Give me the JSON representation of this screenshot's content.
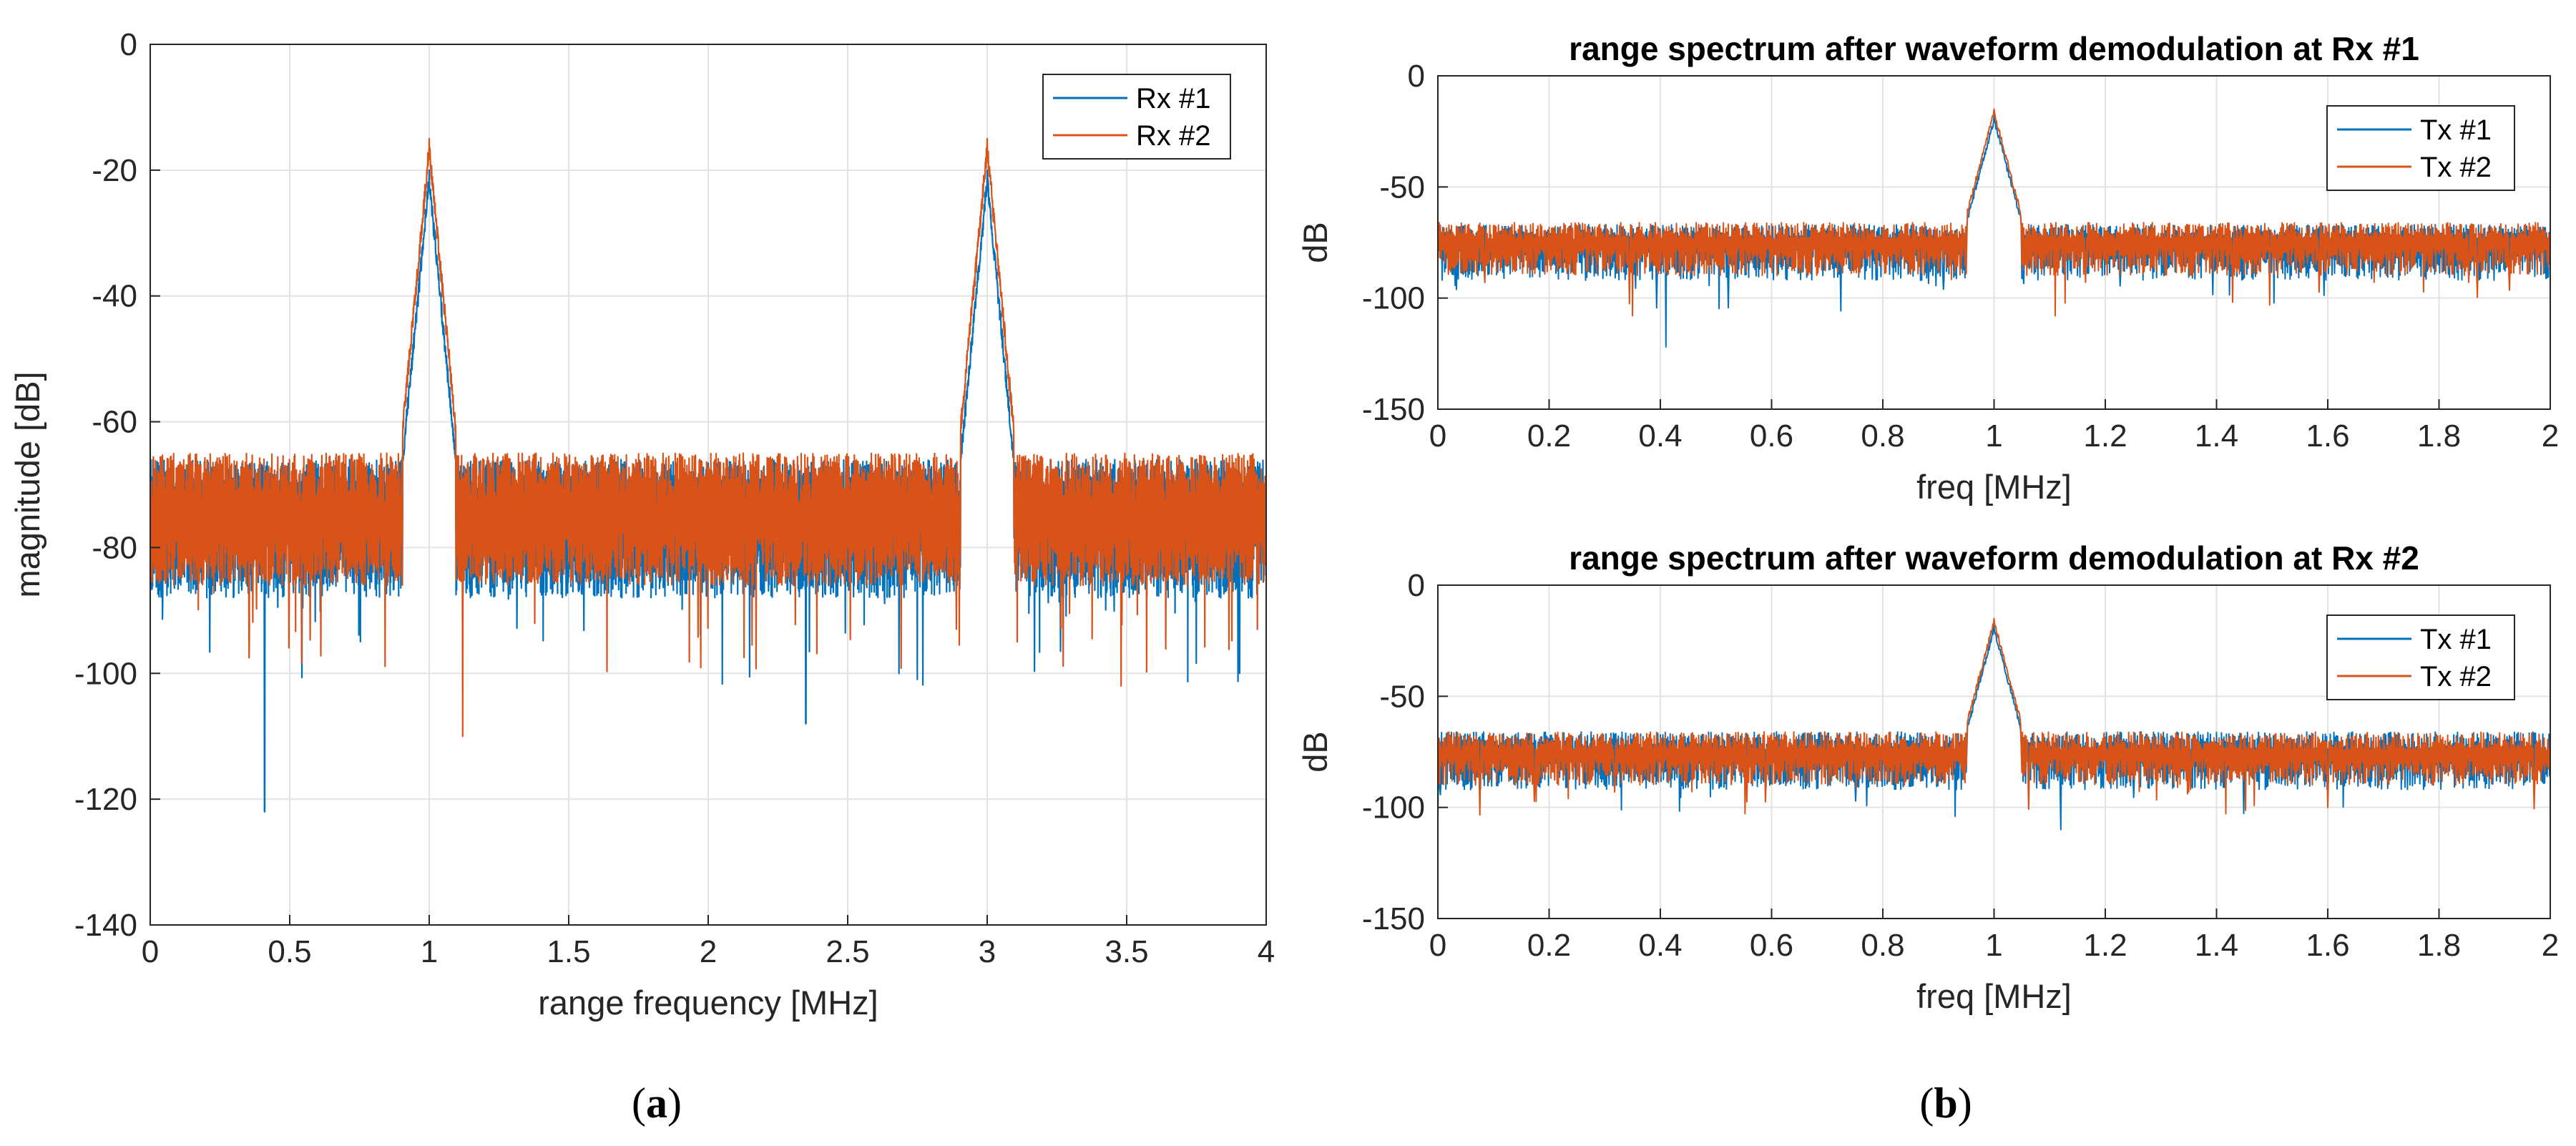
{
  "figure_captions": {
    "a": "a",
    "b": "b"
  },
  "colors": {
    "series1": "#0072BD",
    "series2": "#D95319",
    "grid": "#e3e3e3",
    "axis": "#262626"
  },
  "chart_data": [
    {
      "id": "a",
      "type": "line",
      "title": "",
      "xlabel": "range frequency [MHz]",
      "ylabel": "magnitude [dB]",
      "xlim": [
        0,
        4
      ],
      "ylim": [
        -140,
        0
      ],
      "xticks": [
        0,
        0.5,
        1,
        1.5,
        2,
        2.5,
        3,
        3.5,
        4
      ],
      "xtick_labels": [
        "0",
        "0.5",
        "1",
        "1.5",
        "2",
        "2.5",
        "3",
        "3.5",
        "4"
      ],
      "yticks": [
        -140,
        -120,
        -100,
        -80,
        -60,
        -40,
        -20,
        0
      ],
      "ytick_labels": [
        "-140",
        "-120",
        "-100",
        "-80",
        "-60",
        "-40",
        "-20",
        "0"
      ],
      "grid": true,
      "legend_position": "top-right",
      "series": [
        {
          "name": "Rx #1",
          "noise_floor_db": -75,
          "noise_band_db": [
            -88,
            -66
          ],
          "peaks": [
            {
              "x": 1.0,
              "y": -20
            },
            {
              "x": 3.0,
              "y": -20
            }
          ],
          "deep_dips": [
            {
              "x": 0.41,
              "y": -122
            },
            {
              "x": 2.35,
              "y": -108
            }
          ]
        },
        {
          "name": "Rx #2",
          "noise_floor_db": -75,
          "noise_band_db": [
            -86,
            -65
          ],
          "peaks": [
            {
              "x": 1.0,
              "y": -15
            },
            {
              "x": 3.0,
              "y": -15
            }
          ],
          "deep_dips": [
            {
              "x": 1.12,
              "y": -110
            },
            {
              "x": 3.48,
              "y": -102
            }
          ]
        }
      ]
    },
    {
      "id": "b1",
      "type": "line",
      "title": "range spectrum after waveform demodulation at Rx #1",
      "xlabel": "freq [MHz]",
      "ylabel": "dB",
      "xlim": [
        0,
        2
      ],
      "ylim": [
        -150,
        0
      ],
      "xticks": [
        0,
        0.2,
        0.4,
        0.6,
        0.8,
        1,
        1.2,
        1.4,
        1.6,
        1.8,
        2
      ],
      "xtick_labels": [
        "0",
        "0.2",
        "0.4",
        "0.6",
        "0.8",
        "1",
        "1.2",
        "1.4",
        "1.6",
        "1.8",
        "2"
      ],
      "yticks": [
        -150,
        -100,
        -50,
        0
      ],
      "ytick_labels": [
        "-150",
        "-100",
        "-50",
        "0"
      ],
      "grid": true,
      "legend_position": "top-right",
      "series": [
        {
          "name": "Tx #1",
          "noise_floor_db": -75,
          "noise_band_db": [
            -92,
            -67
          ],
          "peaks": [
            {
              "x": 1.0,
              "y": -18
            }
          ],
          "deep_dips": [
            {
              "x": 0.41,
              "y": -122
            }
          ]
        },
        {
          "name": "Tx #2",
          "noise_floor_db": -75,
          "noise_band_db": [
            -90,
            -66
          ],
          "peaks": [
            {
              "x": 1.0,
              "y": -15
            }
          ],
          "deep_dips": [
            {
              "x": 0.35,
              "y": -108
            },
            {
              "x": 1.11,
              "y": -108
            }
          ]
        }
      ]
    },
    {
      "id": "b2",
      "type": "line",
      "title": "range spectrum after waveform demodulation at Rx #2",
      "xlabel": "freq [MHz]",
      "ylabel": "dB",
      "xlim": [
        0,
        2
      ],
      "ylim": [
        -150,
        0
      ],
      "xticks": [
        0,
        0.2,
        0.4,
        0.6,
        0.8,
        1,
        1.2,
        1.4,
        1.6,
        1.8,
        2
      ],
      "xtick_labels": [
        "0",
        "0.2",
        "0.4",
        "0.6",
        "0.8",
        "1",
        "1.2",
        "1.4",
        "1.6",
        "1.8",
        "2"
      ],
      "yticks": [
        -150,
        -100,
        -50,
        0
      ],
      "ytick_labels": [
        "-150",
        "-100",
        "-50",
        "0"
      ],
      "grid": true,
      "legend_position": "top-right",
      "series": [
        {
          "name": "Tx #1",
          "noise_floor_db": -76,
          "noise_band_db": [
            -92,
            -66
          ],
          "peaks": [
            {
              "x": 1.0,
              "y": -18
            }
          ],
          "deep_dips": [
            {
              "x": 1.12,
              "y": -110
            }
          ]
        },
        {
          "name": "Tx #2",
          "noise_floor_db": -76,
          "noise_band_db": [
            -90,
            -66
          ],
          "peaks": [
            {
              "x": 1.0,
              "y": -15
            }
          ],
          "deep_dips": [
            {
              "x": 1.6,
              "y": -100
            }
          ]
        }
      ]
    }
  ]
}
